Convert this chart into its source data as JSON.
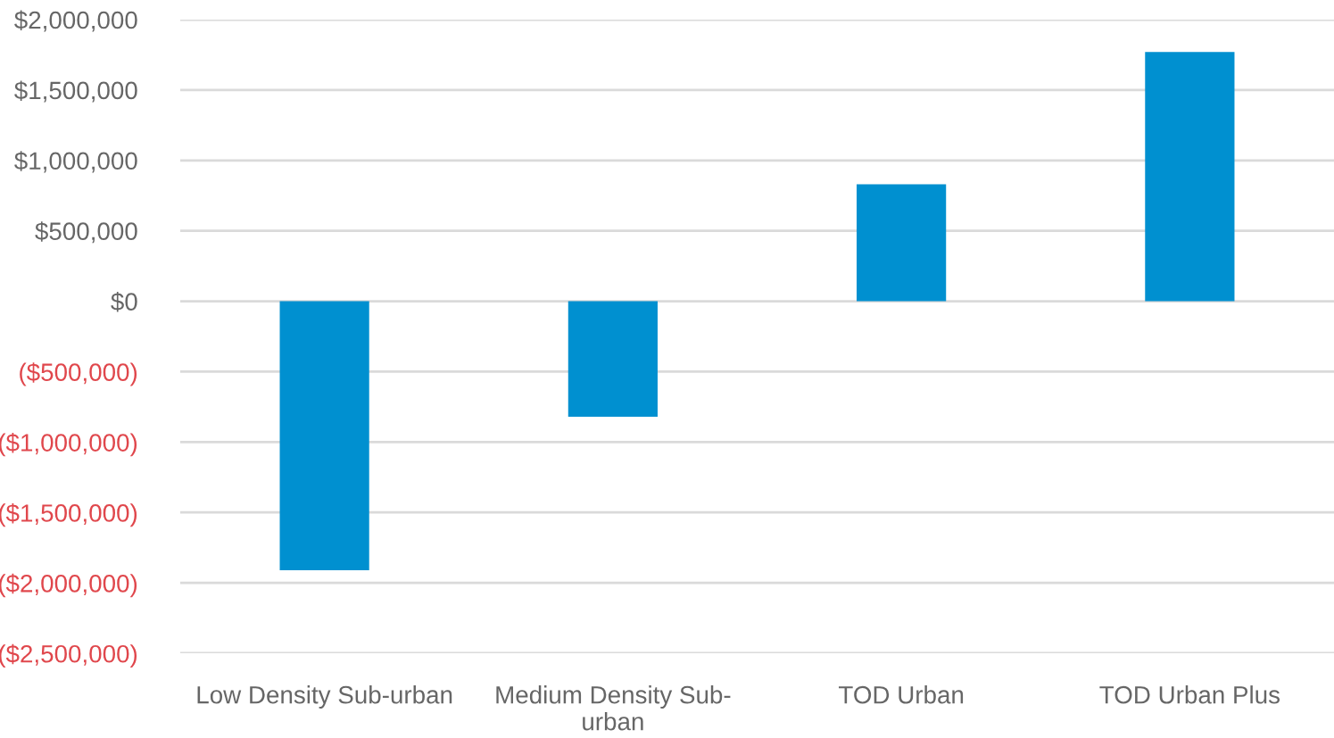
{
  "chart_data": {
    "type": "bar",
    "categories": [
      "Low Density Sub-urban",
      "Medium Density Sub-urban",
      "TOD Urban",
      "TOD Urban Plus"
    ],
    "values": [
      -1910000,
      -820000,
      830000,
      1770000
    ],
    "color": "#0090d0",
    "ylim": [
      -2500000,
      2000000
    ],
    "yticks": [
      {
        "value": -2500000,
        "label": "($2,500,000)"
      },
      {
        "value": -2000000,
        "label": "($2,000,000)"
      },
      {
        "value": -1500000,
        "label": "($1,500,000)"
      },
      {
        "value": -1000000,
        "label": "($1,000,000)"
      },
      {
        "value": -500000,
        "label": "($500,000)"
      },
      {
        "value": 0,
        "label": "$0"
      },
      {
        "value": 500000,
        "label": "$500,000"
      },
      {
        "value": 1000000,
        "label": "$1,000,000"
      },
      {
        "value": 1500000,
        "label": "$1,500,000"
      },
      {
        "value": 2000000,
        "label": "$2,000,000"
      }
    ],
    "grid": "y"
  }
}
